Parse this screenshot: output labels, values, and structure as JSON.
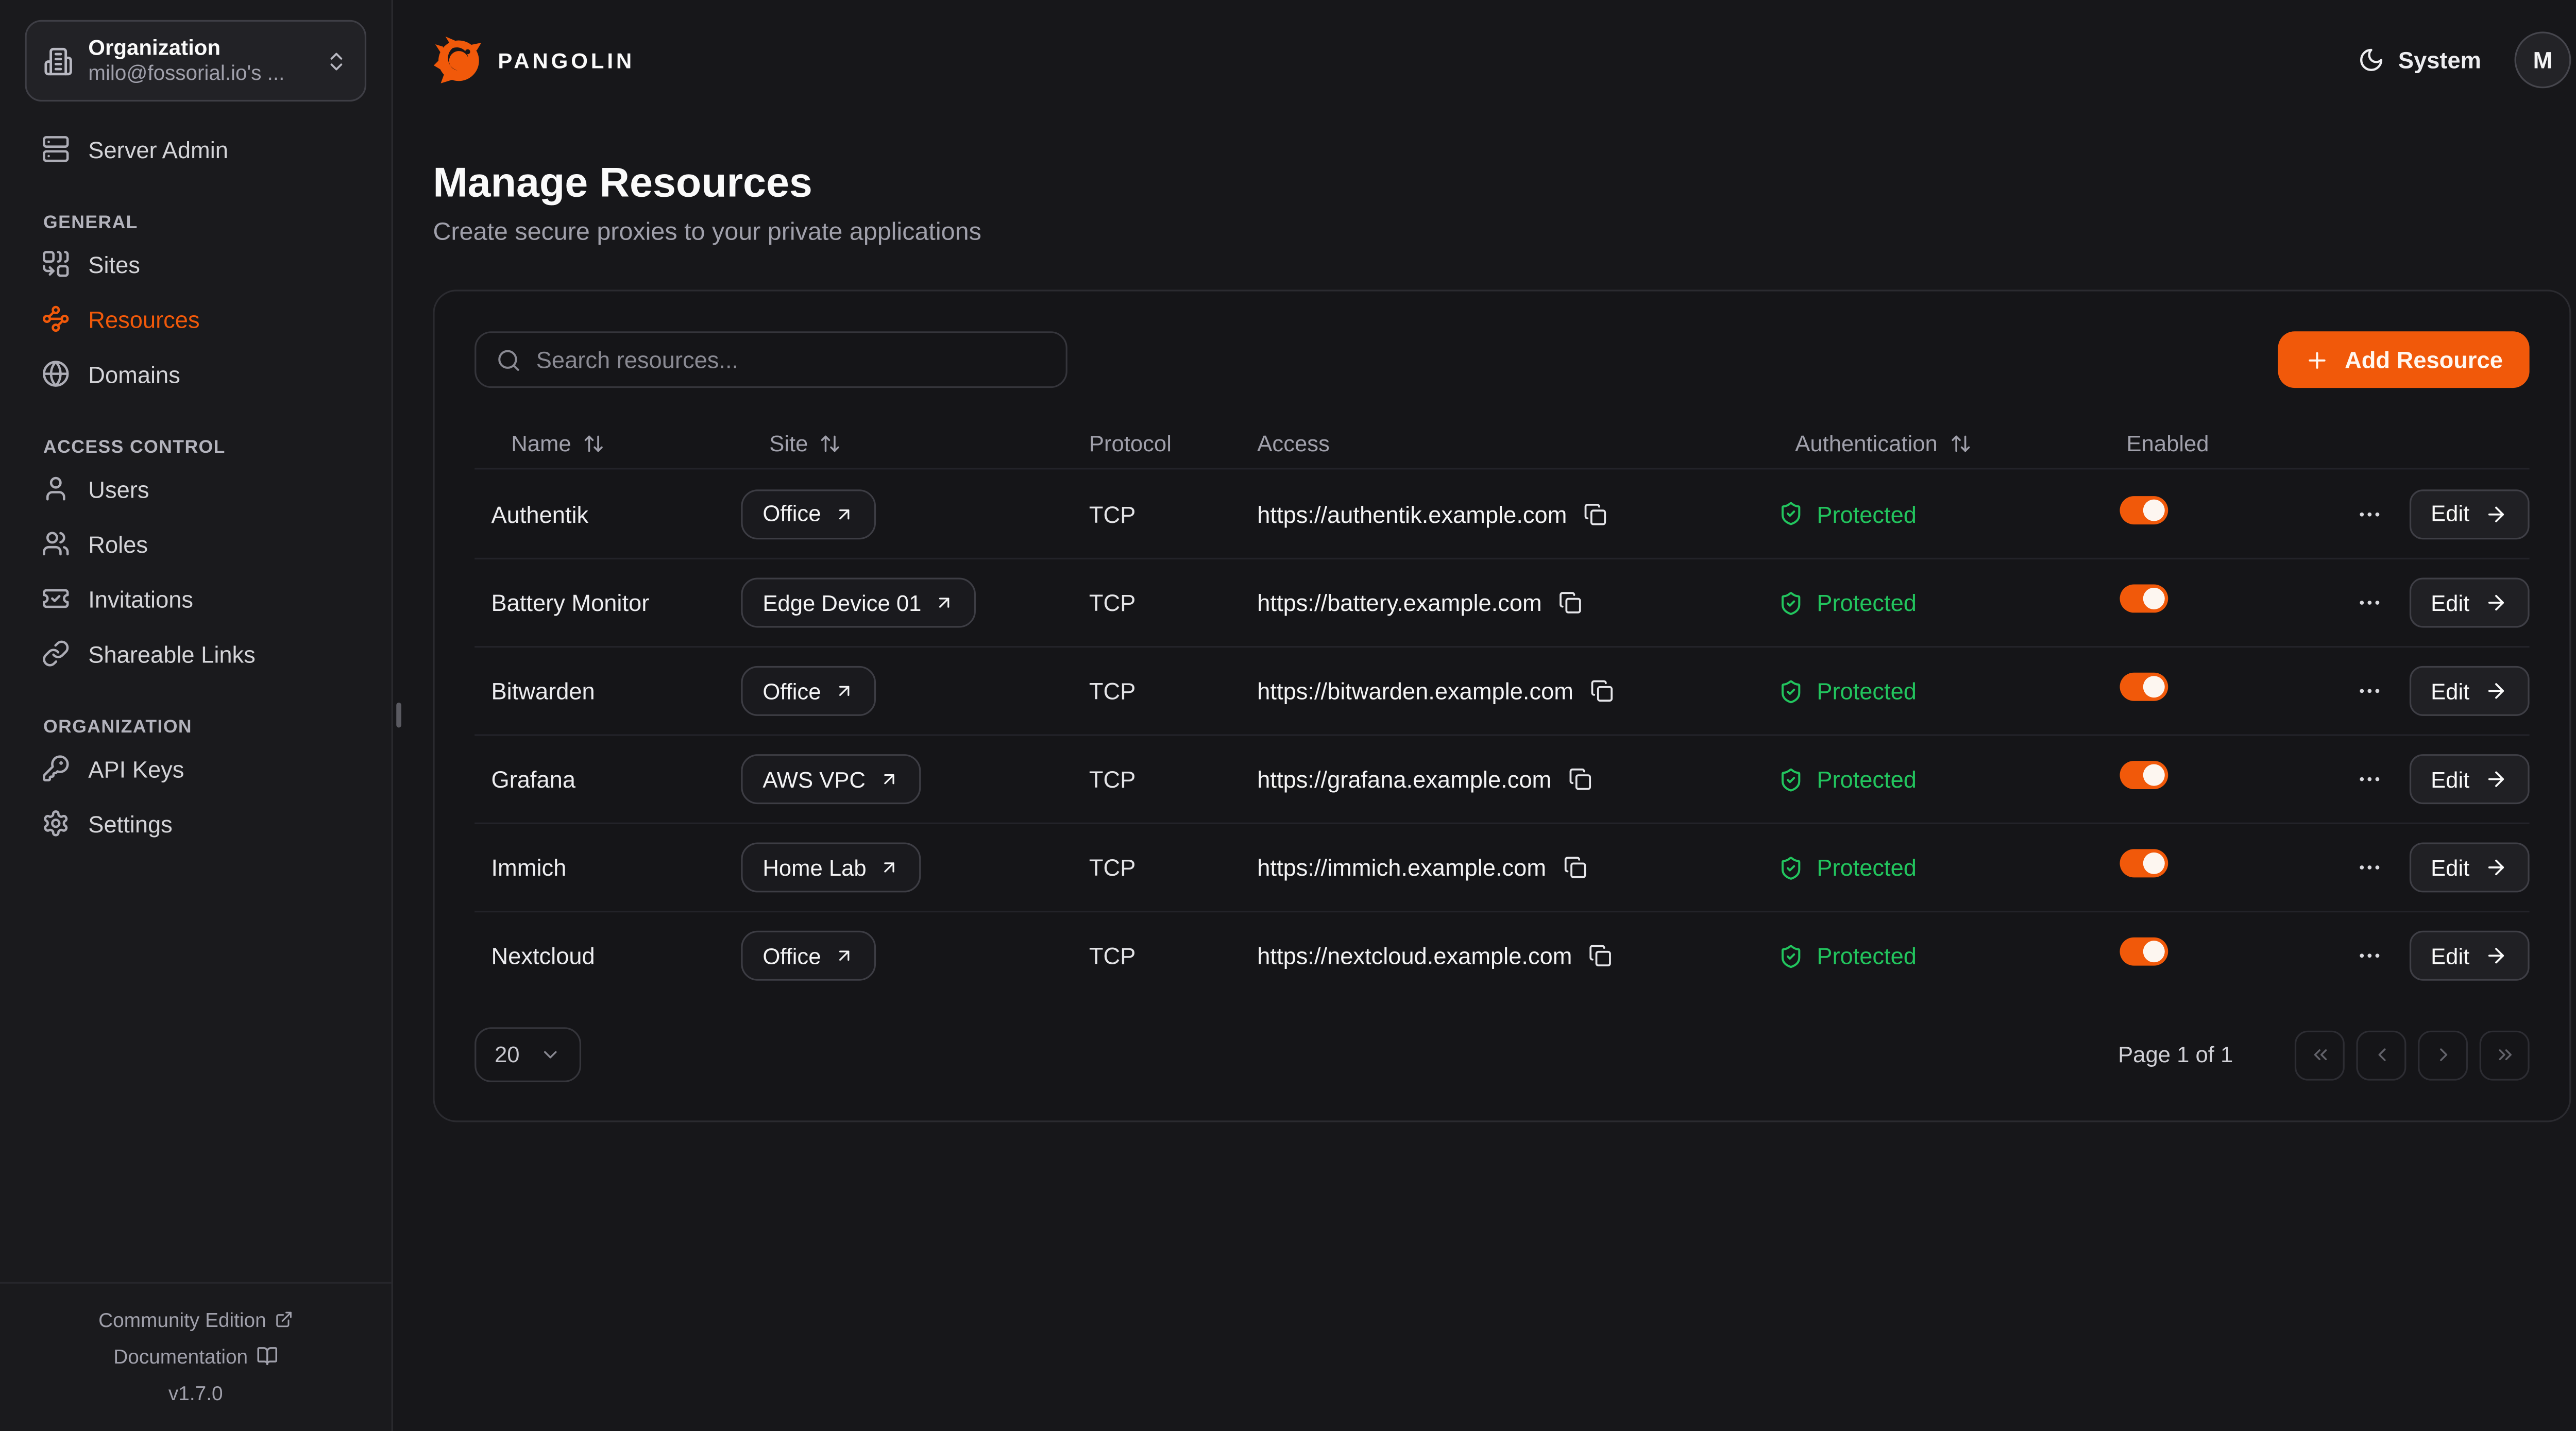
{
  "app": {
    "brand": "PANGOLIN",
    "theme_label": "System",
    "avatar_initial": "M"
  },
  "sidebar": {
    "org_selector": {
      "title": "Organization",
      "subtitle": "milo@fossorial.io's ...",
      "icon": "building"
    },
    "top_items": [
      {
        "id": "server-admin",
        "label": "Server Admin",
        "icon": "server",
        "active": false
      }
    ],
    "sections": [
      {
        "label": "GENERAL",
        "items": [
          {
            "id": "sites",
            "label": "Sites",
            "icon": "combine",
            "active": false
          },
          {
            "id": "resources",
            "label": "Resources",
            "icon": "waypoints",
            "active": true
          },
          {
            "id": "domains",
            "label": "Domains",
            "icon": "globe",
            "active": false
          }
        ]
      },
      {
        "label": "ACCESS CONTROL",
        "items": [
          {
            "id": "users",
            "label": "Users",
            "icon": "user",
            "active": false
          },
          {
            "id": "roles",
            "label": "Roles",
            "icon": "users",
            "active": false
          },
          {
            "id": "invitations",
            "label": "Invitations",
            "icon": "ticket-check",
            "active": false
          },
          {
            "id": "shareable-links",
            "label": "Shareable Links",
            "icon": "link",
            "active": false
          }
        ]
      },
      {
        "label": "ORGANIZATION",
        "items": [
          {
            "id": "api-keys",
            "label": "API Keys",
            "icon": "key",
            "active": false
          },
          {
            "id": "settings",
            "label": "Settings",
            "icon": "settings",
            "active": false
          }
        ]
      }
    ],
    "footer": {
      "community_edition": "Community Edition",
      "documentation": "Documentation",
      "version": "v1.7.0"
    }
  },
  "page": {
    "title": "Manage Resources",
    "subtitle": "Create secure proxies to your private applications"
  },
  "toolbar": {
    "search_placeholder": "Search resources...",
    "add_resource_label": "Add Resource"
  },
  "table": {
    "columns": [
      {
        "label": "Name",
        "sortable": true
      },
      {
        "label": "Site",
        "sortable": true
      },
      {
        "label": "Protocol",
        "sortable": false
      },
      {
        "label": "Access",
        "sortable": false
      },
      {
        "label": "Authentication",
        "sortable": true
      },
      {
        "label": "Enabled",
        "sortable": false
      }
    ],
    "edit_label": "Edit",
    "rows": [
      {
        "name": "Authentik",
        "site": "Office",
        "protocol": "TCP",
        "access": "https://authentik.example.com",
        "authentication": "Protected",
        "enabled": true
      },
      {
        "name": "Battery Monitor",
        "site": "Edge Device 01",
        "protocol": "TCP",
        "access": "https://battery.example.com",
        "authentication": "Protected",
        "enabled": true
      },
      {
        "name": "Bitwarden",
        "site": "Office",
        "protocol": "TCP",
        "access": "https://bitwarden.example.com",
        "authentication": "Protected",
        "enabled": true
      },
      {
        "name": "Grafana",
        "site": "AWS VPC",
        "protocol": "TCP",
        "access": "https://grafana.example.com",
        "authentication": "Protected",
        "enabled": true
      },
      {
        "name": "Immich",
        "site": "Home Lab",
        "protocol": "TCP",
        "access": "https://immich.example.com",
        "authentication": "Protected",
        "enabled": true
      },
      {
        "name": "Nextcloud",
        "site": "Office",
        "protocol": "TCP",
        "access": "https://nextcloud.example.com",
        "authentication": "Protected",
        "enabled": true
      }
    ]
  },
  "pagination": {
    "page_size": "20",
    "page_label": "Page 1 of 1"
  },
  "colors": {
    "accent": "#F1590A",
    "protected_green": "#22C55E"
  }
}
